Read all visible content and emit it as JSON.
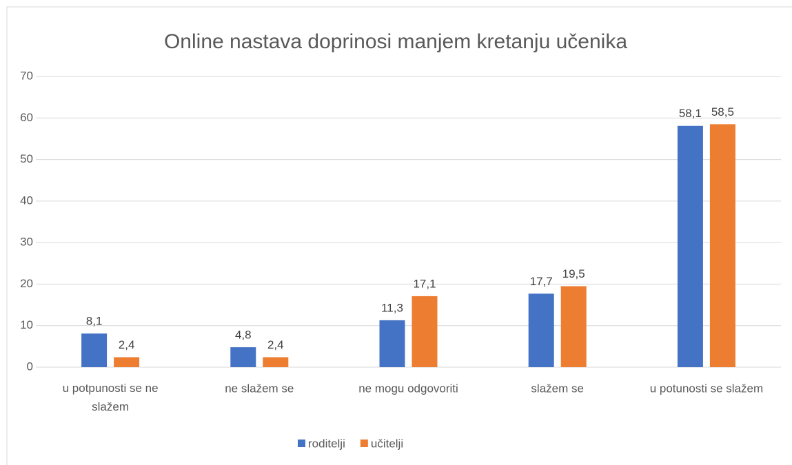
{
  "chart_data": {
    "type": "bar",
    "title": "Online nastava doprinosi manjem kretanju učenika",
    "categories": [
      "u potpunosti se ne slažem",
      "ne slažem se",
      "ne mogu odgovoriti",
      "slažem se",
      "u potunosti se slažem"
    ],
    "series": [
      {
        "name": "roditelji",
        "color": "#4472c4",
        "values": [
          8.1,
          4.8,
          11.3,
          17.7,
          58.1
        ],
        "value_labels": [
          "8,1",
          "4,8",
          "11,3",
          "17,7",
          "58,1"
        ]
      },
      {
        "name": "učitelji",
        "color": "#ed7d31",
        "values": [
          2.4,
          2.4,
          17.1,
          19.5,
          58.5
        ],
        "value_labels": [
          "2,4",
          "2,4",
          "17,1",
          "19,5",
          "58,5"
        ]
      }
    ],
    "ylim": [
      0,
      70
    ],
    "yticks": [
      0,
      10,
      20,
      30,
      40,
      50,
      60,
      70
    ],
    "grid": true,
    "legend": "bottom"
  }
}
